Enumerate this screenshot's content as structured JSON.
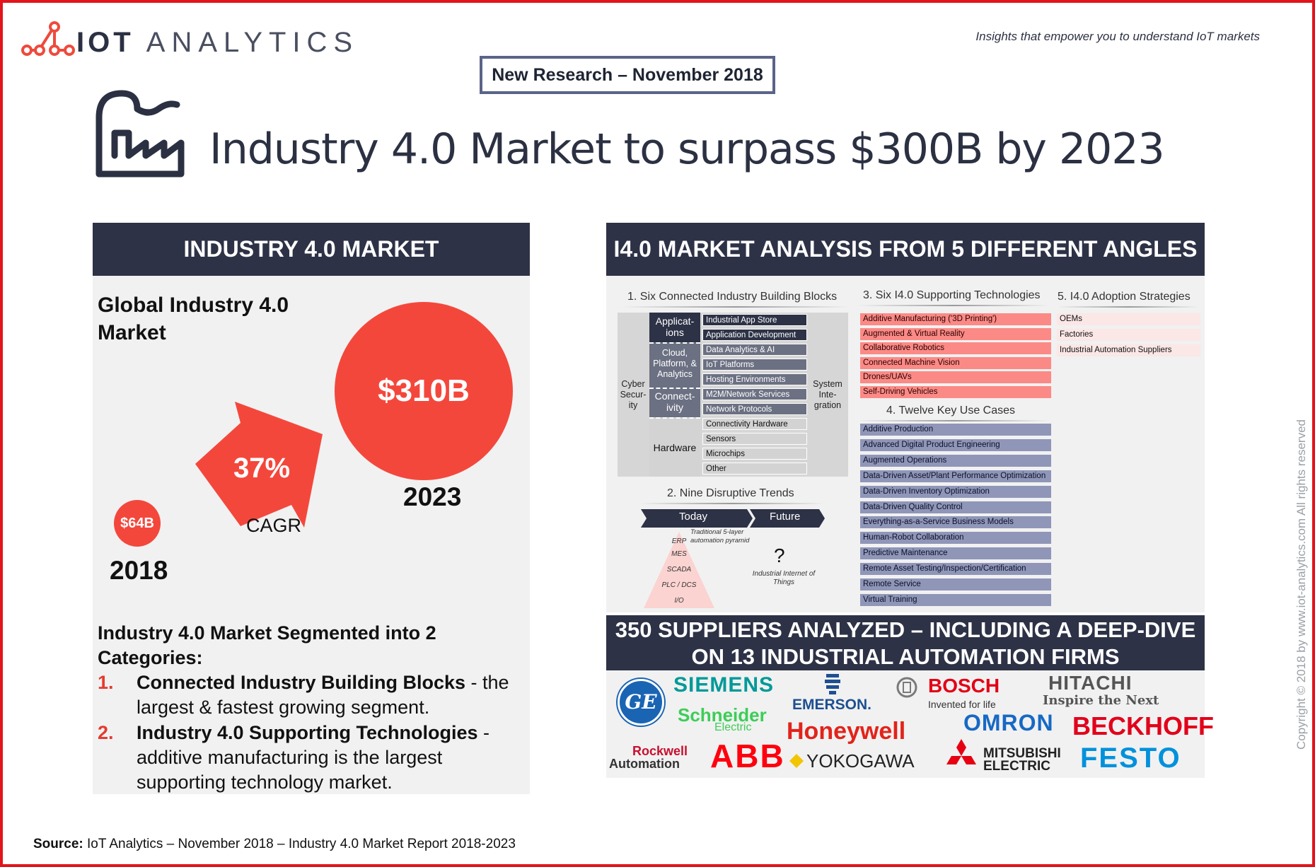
{
  "brand": {
    "logo_bold": "IOT",
    "logo_rest": "ANALYTICS",
    "tagline": "Insights that empower you to understand IoT markets"
  },
  "badge": "New Research – November 2018",
  "title": "Industry 4.0 Market to surpass $300B by 2023",
  "left": {
    "header": "INDUSTRY 4.0 MARKET",
    "global_title": "Global Industry 4.0 Market",
    "value_2023": "$310B",
    "value_2018": "$64B",
    "year_2023": "2023",
    "year_2018": "2018",
    "cagr_value": "37%",
    "cagr_label": "CAGR",
    "segment_title": "Industry 4.0 Market Segmented into 2 Categories:",
    "segments": [
      {
        "num": "1.",
        "bold": "Connected Industry Building Blocks",
        "rest": " - the largest & fastest growing segment."
      },
      {
        "num": "2.",
        "bold": "Industry 4.0 Supporting Technologies",
        "rest": " - additive manufacturing is the largest supporting technology market."
      }
    ]
  },
  "right": {
    "header": "I4.0 MARKET ANALYSIS FROM 5 DIFFERENT ANGLES",
    "block1": {
      "title": "1. Six Connected Industry Building Blocks",
      "left_label": "Cyber Secur-ity",
      "right_label": "System Inte-gration",
      "groups": [
        "Applicat-ions",
        "Cloud, Platform, & Analytics",
        "Connect-ivity",
        "Hardware"
      ],
      "items": [
        "Industrial App Store",
        "Application Development",
        "Data Analytics & AI",
        "IoT Platforms",
        "Hosting Environments",
        "M2M/Network Services",
        "Network Protocols",
        "Connectivity Hardware",
        "Sensors",
        "Microchips",
        "Other"
      ]
    },
    "block2": {
      "title": "2. Nine Disruptive Trends",
      "today": "Today",
      "future": "Future",
      "pyramid_note": "Traditional 5-layer automation pyramid",
      "pyramid": [
        "ERP",
        "MES",
        "SCADA",
        "PLC / DCS",
        "I/O"
      ],
      "question": "?",
      "future_note": "Industrial Internet of Things"
    },
    "block3": {
      "title": "3. Six I4.0 Supporting Technologies",
      "items": [
        "Additive Manufacturing ('3D Printing')",
        "Augmented & Virtual Reality",
        "Collaborative Robotics",
        "Connected Machine Vision",
        "Drones/UAVs",
        "Self-Driving Vehicles"
      ]
    },
    "block4": {
      "title": "4. Twelve Key Use Cases",
      "items": [
        "Additive Production",
        "Advanced Digital Product Engineering",
        "Augmented Operations",
        "Data-Driven Asset/Plant Performance Optimization",
        "Data-Driven Inventory Optimization",
        "Data-Driven Quality Control",
        "Everything-as-a-Service Business Models",
        "Human-Robot Collaboration",
        "Predictive Maintenance",
        "Remote Asset Testing/Inspection/Certification",
        "Remote Service",
        "Virtual Training"
      ]
    },
    "block5": {
      "title": "5. I4.0 Adoption Strategies",
      "items": [
        "OEMs",
        "Factories",
        "Industrial Automation Suppliers"
      ]
    }
  },
  "suppliers": {
    "header_line1": "350 SUPPLIERS ANALYZED – INCLUDING A DEEP-DIVE",
    "header_line2": "ON 13 INDUSTRIAL AUTOMATION FIRMS",
    "logos": {
      "ge": "GE",
      "siemens": "SIEMENS",
      "emerson": "EMERSON.",
      "bosch": "BOSCH",
      "bosch_sub": "Invented for life",
      "hitachi": "HITACHI",
      "hitachi_sub": "Inspire the Next",
      "schneider": "Schneider",
      "schneider_sub": "Electric",
      "honeywell": "Honeywell",
      "omron": "OMRON",
      "beckhoff": "BECKHOFF",
      "rockwell1": "Rockwell",
      "rockwell2": "Automation",
      "abb": "ABB",
      "yokogawa": "YOKOGAWA",
      "mitsubishi1": "MITSUBISHI",
      "mitsubishi2": "ELECTRIC",
      "festo": "FESTO"
    }
  },
  "copyright": "Copyright © 2018 by www.iot-analytics.com All rights reserved",
  "source": {
    "label": "Source:",
    "text": " IoT Analytics – November 2018 – Industry 4.0 Market Report 2018-2023"
  },
  "colors": {
    "accent_red": "#f4473c",
    "navy": "#2d3246",
    "frame_red": "#e3141b"
  }
}
